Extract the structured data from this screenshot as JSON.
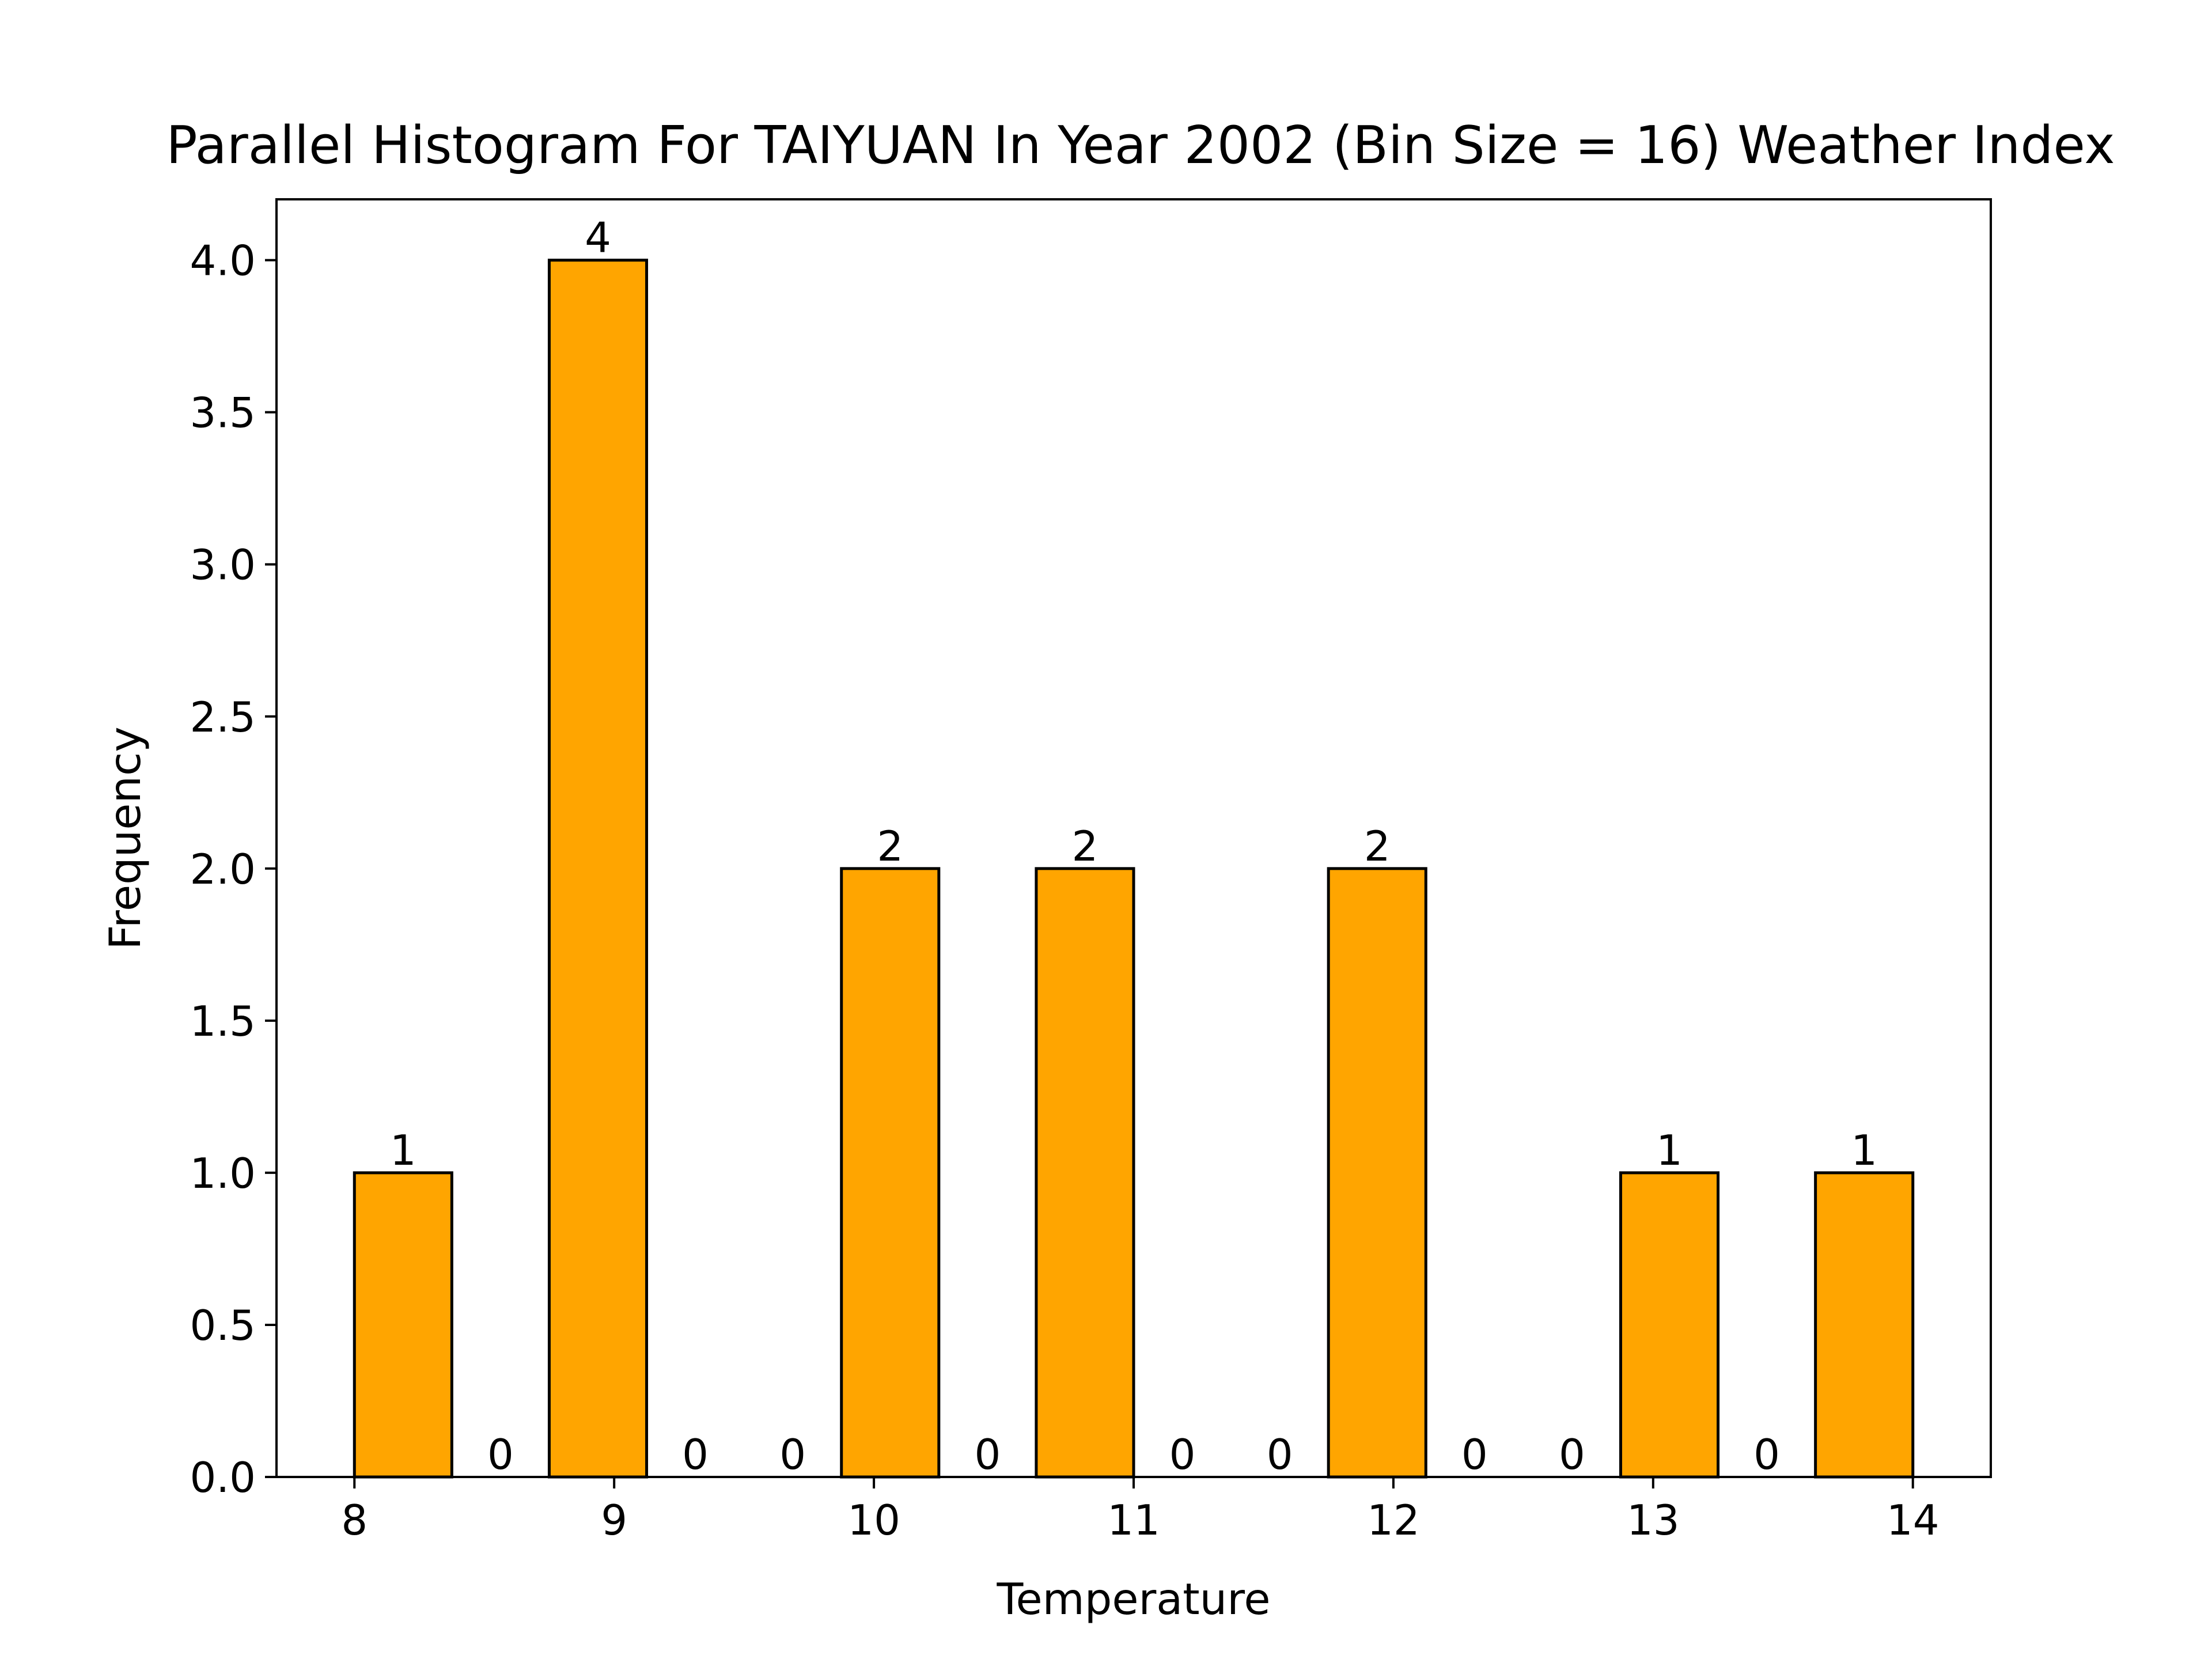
{
  "chart_data": {
    "type": "bar",
    "title": "Parallel Histogram For TAIYUAN In Year 2002 (Bin Size = 16) Weather Index",
    "xlabel": "Temperature",
    "ylabel": "Frequency",
    "bins": [
      {
        "x0": 8.0,
        "x1": 8.375,
        "value": 1,
        "label": "1"
      },
      {
        "x0": 8.375,
        "x1": 8.75,
        "value": 0,
        "label": "0"
      },
      {
        "x0": 8.75,
        "x1": 9.125,
        "value": 4,
        "label": "4"
      },
      {
        "x0": 9.125,
        "x1": 9.5,
        "value": 0,
        "label": "0"
      },
      {
        "x0": 9.5,
        "x1": 9.875,
        "value": 0,
        "label": "0"
      },
      {
        "x0": 9.875,
        "x1": 10.25,
        "value": 2,
        "label": "2"
      },
      {
        "x0": 10.25,
        "x1": 10.625,
        "value": 0,
        "label": "0"
      },
      {
        "x0": 10.625,
        "x1": 11.0,
        "value": 2,
        "label": "2"
      },
      {
        "x0": 11.0,
        "x1": 11.375,
        "value": 0,
        "label": "0"
      },
      {
        "x0": 11.375,
        "x1": 11.75,
        "value": 0,
        "label": "0"
      },
      {
        "x0": 11.75,
        "x1": 12.125,
        "value": 2,
        "label": "2"
      },
      {
        "x0": 12.125,
        "x1": 12.5,
        "value": 0,
        "label": "0"
      },
      {
        "x0": 12.5,
        "x1": 12.875,
        "value": 0,
        "label": "0"
      },
      {
        "x0": 12.875,
        "x1": 13.25,
        "value": 1,
        "label": "1"
      },
      {
        "x0": 13.25,
        "x1": 13.625,
        "value": 0,
        "label": "0"
      },
      {
        "x0": 13.625,
        "x1": 14.0,
        "value": 1,
        "label": "1"
      }
    ],
    "x_ticks": [
      "8",
      "9",
      "10",
      "11",
      "12",
      "13",
      "14"
    ],
    "y_ticks": [
      "0.0",
      "0.5",
      "1.0",
      "1.5",
      "2.0",
      "2.5",
      "3.0",
      "3.5",
      "4.0"
    ],
    "xlim": [
      7.7,
      14.3
    ],
    "ylim": [
      0,
      4.2
    ],
    "grid": false,
    "bar_color": "#ffa500",
    "edge_color": "#000000"
  }
}
